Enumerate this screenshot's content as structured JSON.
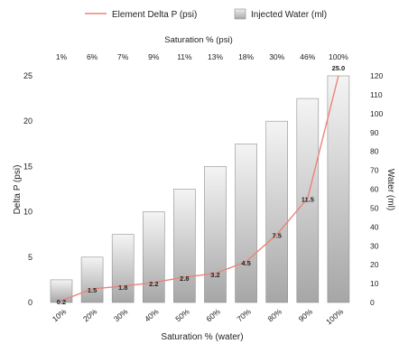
{
  "chart_data": {
    "type": "bar",
    "categories": [
      "10%",
      "20%",
      "30%",
      "40%",
      "50%",
      "60%",
      "70%",
      "80%",
      "90%",
      "100%"
    ],
    "top_categories": [
      "1%",
      "6%",
      "7%",
      "9%",
      "11%",
      "13%",
      "18%",
      "30%",
      "46%",
      "100%"
    ],
    "xlabel": "Saturation % (water)",
    "x2label": "Saturation % (psi)",
    "ylabel": "Delta P (psi)",
    "y2label": "Water (ml)",
    "ylim": [
      0,
      25
    ],
    "y2lim": [
      0,
      120
    ],
    "yticks": [
      0,
      5,
      10,
      15,
      20,
      25
    ],
    "y2ticks": [
      0,
      10,
      20,
      30,
      40,
      50,
      60,
      70,
      80,
      90,
      100,
      110,
      120
    ],
    "grid": false,
    "legend_position": "top",
    "series": [
      {
        "name": "Element Delta P (psi)",
        "type": "line",
        "axis": "left",
        "color": "#e8857a",
        "values": [
          0.2,
          1.5,
          1.8,
          2.2,
          2.8,
          3.2,
          4.5,
          7.5,
          11.5,
          25.0
        ],
        "labels": [
          "0.2",
          "1.5",
          "1.8",
          "2.2",
          "2.8",
          "3.2",
          "4.5",
          "7.5",
          "11.5",
          "25.0"
        ]
      },
      {
        "name": "Injected Water (ml)",
        "type": "bar",
        "axis": "right",
        "color": "#c9c9c9",
        "values": [
          12,
          24,
          36,
          48,
          60,
          72,
          84,
          96,
          108,
          120
        ]
      }
    ]
  }
}
